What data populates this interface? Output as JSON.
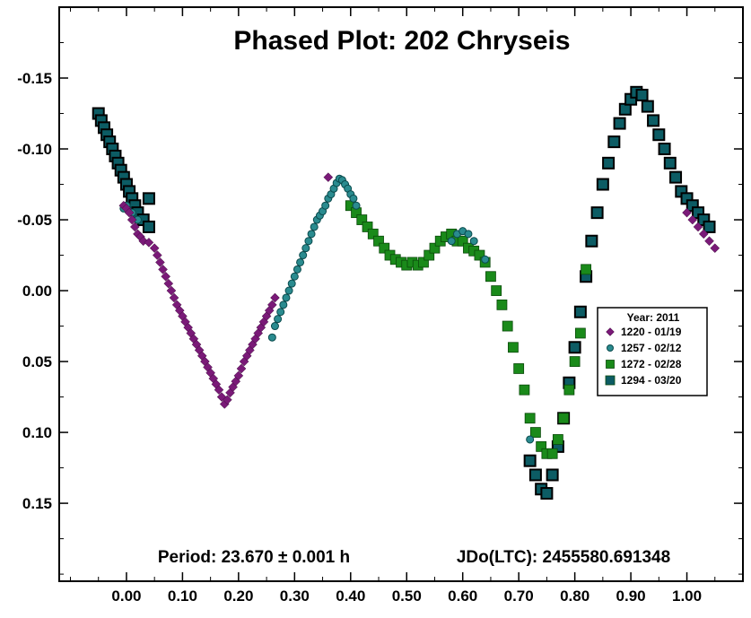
{
  "chart_data": {
    "type": "scatter",
    "title": "Phased Plot: 202 Chryseis",
    "xlabel": "",
    "ylabel": "",
    "xlim": [
      -0.12,
      1.1
    ],
    "ylim": [
      0.205,
      -0.2
    ],
    "y_inverted": true,
    "x_ticks": [
      "0.00",
      "0.10",
      "0.20",
      "0.30",
      "0.40",
      "0.50",
      "0.60",
      "0.70",
      "0.80",
      "0.90",
      "1.00"
    ],
    "x_tick_values": [
      0,
      0.1,
      0.2,
      0.3,
      0.4,
      0.5,
      0.6,
      0.7,
      0.8,
      0.9,
      1.0
    ],
    "y_ticks": [
      "-0.15",
      "-0.10",
      "-0.05",
      "0.00",
      "0.05",
      "0.10",
      "0.15"
    ],
    "y_tick_values": [
      -0.15,
      -0.1,
      -0.05,
      0,
      0.05,
      0.1,
      0.15
    ],
    "annotation": {
      "period": "Period: 23.670 ± 0.001 h",
      "epoch": "JDo(LTC): 2455580.691348"
    },
    "legend": {
      "title": "Year: 2011",
      "placement": "right"
    },
    "colors": {
      "s1220": "#7a1a78",
      "s1257": "#2a8b8f",
      "s1272": "#1a8a1a",
      "s1294": "#0c5c64"
    },
    "series": [
      {
        "name": "1220 - 01/19",
        "marker": "diamond",
        "color": "#7a1a78",
        "x": [
          -0.005,
          0.0,
          0.005,
          0.01,
          0.015,
          0.02,
          0.025,
          0.03,
          0.04,
          0.05,
          0.055,
          0.06,
          0.065,
          0.07,
          0.075,
          0.08,
          0.085,
          0.09,
          0.095,
          0.1,
          0.105,
          0.11,
          0.115,
          0.12,
          0.125,
          0.13,
          0.135,
          0.14,
          0.145,
          0.15,
          0.155,
          0.16,
          0.165,
          0.17,
          0.175,
          0.18,
          0.185,
          0.19,
          0.195,
          0.2,
          0.205,
          0.21,
          0.215,
          0.22,
          0.225,
          0.23,
          0.235,
          0.24,
          0.245,
          0.25,
          0.255,
          0.26,
          0.265,
          0.36,
          1.0,
          1.01,
          1.02,
          1.03,
          1.04,
          1.05
        ],
        "y": [
          -0.06,
          -0.058,
          -0.055,
          -0.05,
          -0.045,
          -0.04,
          -0.038,
          -0.035,
          -0.034,
          -0.03,
          -0.025,
          -0.02,
          -0.015,
          -0.01,
          -0.005,
          0.0,
          0.005,
          0.01,
          0.014,
          0.018,
          0.022,
          0.026,
          0.03,
          0.034,
          0.038,
          0.042,
          0.046,
          0.05,
          0.054,
          0.058,
          0.062,
          0.066,
          0.07,
          0.075,
          0.08,
          0.077,
          0.072,
          0.068,
          0.064,
          0.06,
          0.055,
          0.05,
          0.046,
          0.042,
          0.038,
          0.034,
          0.03,
          0.026,
          0.022,
          0.018,
          0.014,
          0.01,
          0.005,
          -0.08,
          -0.055,
          -0.05,
          -0.045,
          -0.04,
          -0.035,
          -0.03
        ]
      },
      {
        "name": "1257 - 02/12",
        "marker": "circle",
        "color": "#2a8b8f",
        "x": [
          -0.005,
          0.0,
          0.01,
          0.02,
          0.26,
          0.265,
          0.27,
          0.275,
          0.28,
          0.285,
          0.29,
          0.295,
          0.3,
          0.305,
          0.31,
          0.315,
          0.32,
          0.325,
          0.33,
          0.335,
          0.34,
          0.345,
          0.35,
          0.355,
          0.36,
          0.365,
          0.37,
          0.375,
          0.38,
          0.385,
          0.39,
          0.395,
          0.4,
          0.405,
          0.41,
          0.58,
          0.59,
          0.6,
          0.61,
          0.62,
          0.64,
          0.72
        ],
        "y": [
          -0.058,
          -0.06,
          -0.055,
          -0.05,
          0.033,
          0.025,
          0.02,
          0.015,
          0.01,
          0.005,
          0.0,
          -0.005,
          -0.01,
          -0.015,
          -0.02,
          -0.025,
          -0.03,
          -0.035,
          -0.04,
          -0.045,
          -0.05,
          -0.053,
          -0.056,
          -0.06,
          -0.065,
          -0.068,
          -0.072,
          -0.076,
          -0.079,
          -0.078,
          -0.075,
          -0.072,
          -0.068,
          -0.065,
          -0.06,
          -0.035,
          -0.04,
          -0.042,
          -0.04,
          -0.035,
          -0.022,
          0.105
        ]
      },
      {
        "name": "1272 - 02/28",
        "marker": "square",
        "color": "#1a8a1a",
        "x": [
          0.4,
          0.41,
          0.42,
          0.43,
          0.44,
          0.45,
          0.46,
          0.47,
          0.48,
          0.49,
          0.5,
          0.51,
          0.52,
          0.53,
          0.54,
          0.55,
          0.56,
          0.57,
          0.58,
          0.59,
          0.6,
          0.61,
          0.62,
          0.63,
          0.64,
          0.65,
          0.66,
          0.67,
          0.68,
          0.69,
          0.7,
          0.71,
          0.72,
          0.73,
          0.74,
          0.75,
          0.76,
          0.77,
          0.78,
          0.79,
          0.8,
          0.81,
          0.82
        ],
        "y": [
          -0.06,
          -0.055,
          -0.05,
          -0.045,
          -0.04,
          -0.035,
          -0.03,
          -0.025,
          -0.022,
          -0.02,
          -0.018,
          -0.02,
          -0.018,
          -0.02,
          -0.025,
          -0.03,
          -0.035,
          -0.038,
          -0.04,
          -0.035,
          -0.035,
          -0.03,
          -0.028,
          -0.025,
          -0.02,
          -0.01,
          0.0,
          0.01,
          0.025,
          0.04,
          0.055,
          0.07,
          0.09,
          0.1,
          0.11,
          0.115,
          0.115,
          0.105,
          0.09,
          0.07,
          0.05,
          0.03,
          -0.015
        ]
      },
      {
        "name": "1294 - 03/20",
        "marker": "square",
        "color": "#0c5c64",
        "x": [
          -0.05,
          -0.045,
          -0.04,
          -0.035,
          -0.03,
          -0.025,
          -0.02,
          -0.015,
          -0.01,
          -0.005,
          0.0,
          0.005,
          0.01,
          0.015,
          0.02,
          0.03,
          0.04,
          0.04,
          0.72,
          0.73,
          0.74,
          0.75,
          0.76,
          0.77,
          0.78,
          0.79,
          0.8,
          0.81,
          0.82,
          0.83,
          0.84,
          0.85,
          0.86,
          0.87,
          0.88,
          0.89,
          0.9,
          0.91,
          0.92,
          0.93,
          0.94,
          0.95,
          0.96,
          0.97,
          0.98,
          0.99,
          1.0,
          1.01,
          1.02,
          1.03,
          1.04
        ],
        "y": [
          -0.125,
          -0.12,
          -0.115,
          -0.11,
          -0.105,
          -0.1,
          -0.095,
          -0.09,
          -0.085,
          -0.08,
          -0.075,
          -0.07,
          -0.065,
          -0.06,
          -0.055,
          -0.05,
          -0.045,
          -0.065,
          0.12,
          0.13,
          0.14,
          0.143,
          0.13,
          0.11,
          0.09,
          0.065,
          0.04,
          0.015,
          -0.01,
          -0.035,
          -0.055,
          -0.075,
          -0.09,
          -0.105,
          -0.118,
          -0.128,
          -0.135,
          -0.14,
          -0.138,
          -0.13,
          -0.12,
          -0.11,
          -0.1,
          -0.09,
          -0.08,
          -0.07,
          -0.065,
          -0.06,
          -0.055,
          -0.05,
          -0.045
        ]
      }
    ]
  }
}
